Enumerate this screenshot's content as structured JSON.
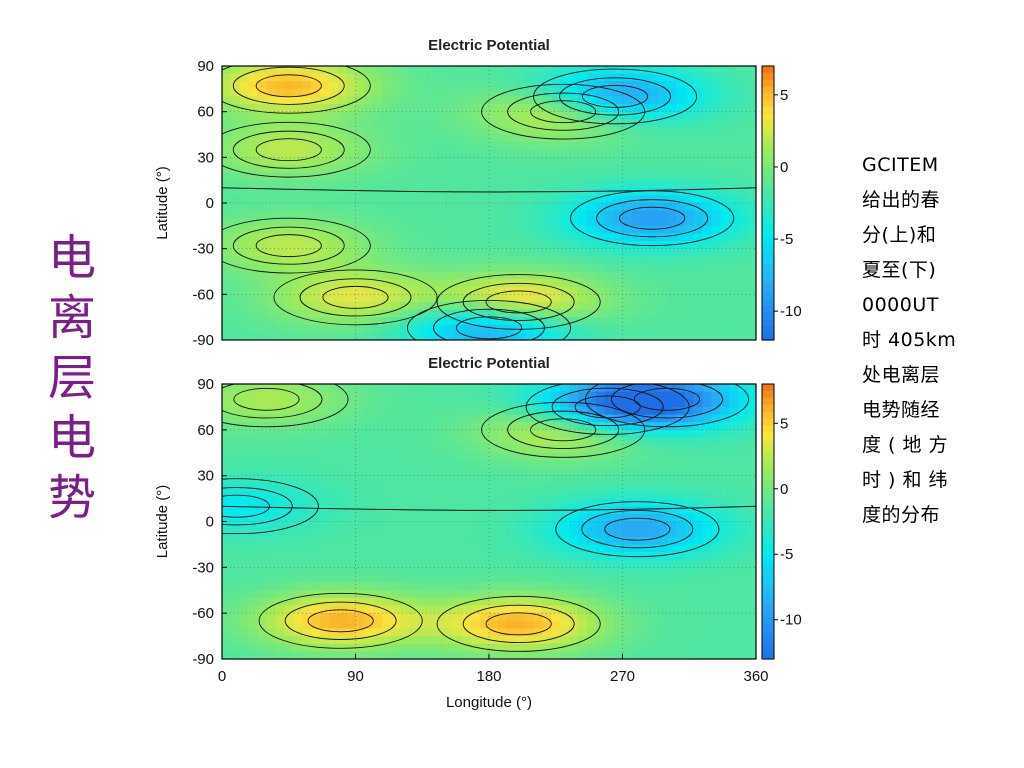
{
  "slide": {
    "vertical_title": [
      "电",
      "离",
      "层",
      "电",
      "势"
    ],
    "caption_lines": [
      "GCITEM",
      "给出的春",
      "分(上)和",
      "夏至(下)",
      "0000UT",
      "时 405km",
      "处电离层",
      "电势随经",
      "度 ( 地 方",
      "时 ) 和 纬",
      "度的分布"
    ]
  },
  "chart_data": [
    {
      "type": "heatmap",
      "title": "Electric Potential",
      "xlabel": "Longitude (°)",
      "ylabel": "Latitude (°)",
      "xlim": [
        0,
        360
      ],
      "ylim": [
        -90,
        90
      ],
      "x_ticks": [
        "0",
        "90",
        "180",
        "270",
        "360"
      ],
      "y_ticks": [
        "90",
        "60",
        "30",
        "0",
        "-30",
        "-60",
        "-90"
      ],
      "x_tick_values": [
        0,
        90,
        180,
        270,
        360
      ],
      "y_tick_values": [
        90,
        60,
        30,
        0,
        -30,
        -60,
        -90
      ],
      "colorbar": {
        "min": -12,
        "max": 7,
        "ticks": [
          "5",
          "0",
          "-5",
          "-10"
        ],
        "tick_values": [
          5,
          0,
          -5,
          -10
        ]
      },
      "grid": true,
      "features": [
        {
          "kind": "high",
          "lon": 45,
          "lat": 77,
          "value": 5
        },
        {
          "kind": "high",
          "lon": 45,
          "lat": 35,
          "value": 2
        },
        {
          "kind": "high",
          "lon": 45,
          "lat": -28,
          "value": 2
        },
        {
          "kind": "high",
          "lon": 90,
          "lat": -62,
          "value": 3
        },
        {
          "kind": "high",
          "lon": 200,
          "lat": -65,
          "value": 5
        },
        {
          "kind": "high",
          "lon": 230,
          "lat": 60,
          "value": 4
        },
        {
          "kind": "low",
          "lon": 265,
          "lat": 70,
          "value": -10
        },
        {
          "kind": "low",
          "lon": 290,
          "lat": -10,
          "value": -9
        },
        {
          "kind": "low",
          "lon": 180,
          "lat": -82,
          "value": -9
        }
      ]
    },
    {
      "type": "heatmap",
      "title": "Electric Potential",
      "xlabel": "Longitude (°)",
      "ylabel": "Latitude (°)",
      "xlim": [
        0,
        360
      ],
      "ylim": [
        -90,
        90
      ],
      "x_ticks": [
        "0",
        "90",
        "180",
        "270",
        "360"
      ],
      "y_ticks": [
        "90",
        "60",
        "30",
        "0",
        "-30",
        "-60",
        "-90"
      ],
      "x_tick_values": [
        0,
        90,
        180,
        270,
        360
      ],
      "y_tick_values": [
        90,
        60,
        30,
        0,
        -30,
        -60,
        -90
      ],
      "colorbar": {
        "min": -13,
        "max": 8,
        "ticks": [
          "5",
          "0",
          "-5",
          "-10"
        ],
        "tick_values": [
          5,
          0,
          -5,
          -10
        ]
      },
      "grid": true,
      "features": [
        {
          "kind": "high",
          "lon": 30,
          "lat": 80,
          "value": 2
        },
        {
          "kind": "high",
          "lon": 230,
          "lat": 60,
          "value": 4
        },
        {
          "kind": "high",
          "lon": 80,
          "lat": -65,
          "value": 6
        },
        {
          "kind": "high",
          "lon": 200,
          "lat": -67,
          "value": 6
        },
        {
          "kind": "low",
          "lon": 10,
          "lat": 10,
          "value": -5
        },
        {
          "kind": "low",
          "lon": 260,
          "lat": 75,
          "value": -10
        },
        {
          "kind": "low",
          "lon": 300,
          "lat": 80,
          "value": -10
        },
        {
          "kind": "low",
          "lon": 280,
          "lat": -5,
          "value": -9
        }
      ]
    }
  ]
}
